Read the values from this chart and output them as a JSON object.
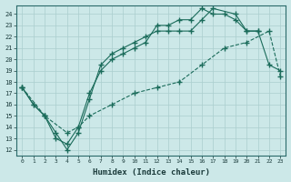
{
  "xlabel": "Humidex (Indice chaleur)",
  "background_color": "#cce8e8",
  "grid_color": "#aacece",
  "line_color": "#1a6b5a",
  "xlim": [
    -0.5,
    23.5
  ],
  "ylim": [
    11.5,
    24.8
  ],
  "yticks": [
    12,
    13,
    14,
    15,
    16,
    17,
    18,
    19,
    20,
    21,
    22,
    23,
    24
  ],
  "xticks": [
    0,
    1,
    2,
    3,
    4,
    5,
    6,
    7,
    8,
    9,
    10,
    11,
    12,
    13,
    14,
    15,
    16,
    17,
    18,
    19,
    20,
    21,
    22,
    23
  ],
  "line1_x": [
    0,
    1,
    2,
    3,
    4,
    5,
    6,
    7,
    8,
    9,
    10,
    11,
    12,
    13,
    14,
    15,
    16,
    17,
    18,
    19,
    20,
    21
  ],
  "line1_y": [
    17.5,
    16.0,
    15.0,
    13.0,
    12.5,
    14.0,
    17.0,
    19.0,
    20.0,
    20.5,
    21.0,
    21.5,
    23.0,
    23.0,
    23.5,
    23.5,
    24.5,
    24.0,
    24.0,
    23.5,
    22.5,
    22.5
  ],
  "line2_x": [
    0,
    1,
    2,
    3,
    4,
    5,
    6,
    7,
    8,
    9,
    10,
    11,
    12,
    13,
    14,
    15,
    16,
    17,
    19,
    20,
    21,
    22,
    23
  ],
  "line2_y": [
    17.5,
    16.0,
    15.0,
    13.5,
    12.0,
    13.5,
    16.5,
    19.5,
    20.5,
    21.0,
    21.5,
    22.0,
    22.5,
    22.5,
    22.5,
    22.5,
    23.5,
    24.5,
    24.0,
    22.5,
    22.5,
    19.5,
    19.0
  ],
  "line3_x": [
    0,
    2,
    4,
    5,
    6,
    8,
    10,
    12,
    14,
    16,
    18,
    20,
    22,
    23
  ],
  "line3_y": [
    17.5,
    15.0,
    13.5,
    14.0,
    15.0,
    16.0,
    17.0,
    17.5,
    18.0,
    19.5,
    21.0,
    21.5,
    22.5,
    18.5
  ]
}
